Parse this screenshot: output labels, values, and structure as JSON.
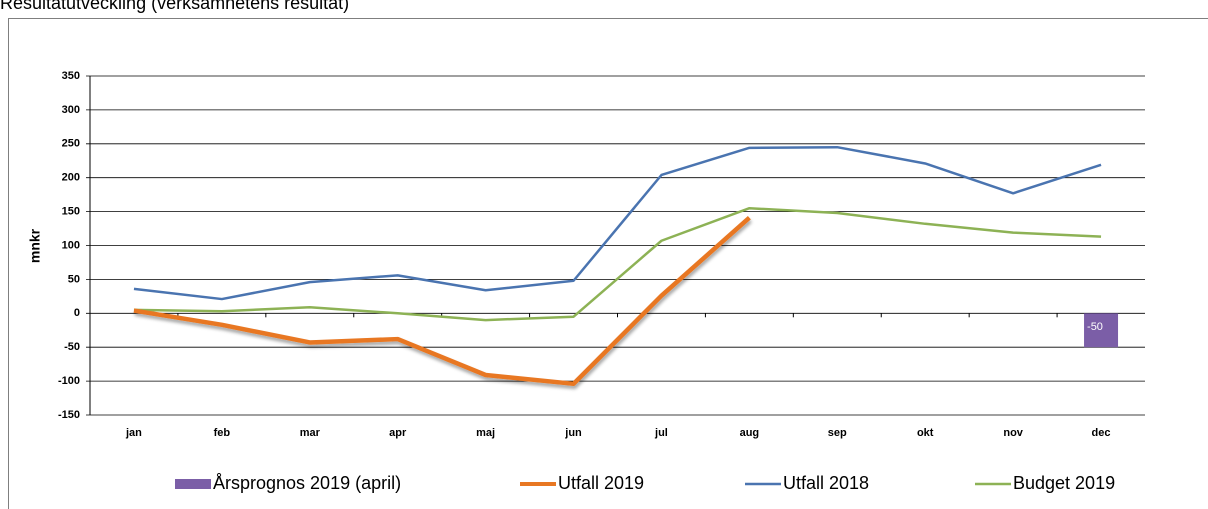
{
  "chart_data": {
    "type": "line",
    "title": "Resultatutveckling (verksamhetens resultat)",
    "ylabel": "mnkr",
    "categories": [
      "jan",
      "feb",
      "mar",
      "apr",
      "maj",
      "jun",
      "jul",
      "aug",
      "sep",
      "okt",
      "nov",
      "dec"
    ],
    "ylim": [
      -150,
      350
    ],
    "yticks": [
      -150,
      -100,
      -50,
      0,
      50,
      100,
      150,
      200,
      250,
      300,
      350
    ],
    "grid": true,
    "legend": "bottom",
    "series": [
      {
        "name": "Årsprognos 2019 (april)",
        "type": "bar",
        "color": "#7b5ea7",
        "values": [
          null,
          null,
          null,
          null,
          null,
          null,
          null,
          null,
          null,
          null,
          null,
          -50
        ]
      },
      {
        "name": "Utfall 2019",
        "color": "#e87722",
        "values": [
          4,
          -17,
          -43,
          -38,
          -91,
          -104,
          26,
          141,
          null,
          null,
          null,
          null
        ]
      },
      {
        "name": "Utfall 2018",
        "color": "#4a74b0",
        "values": [
          36,
          21,
          46,
          56,
          34,
          48,
          204,
          244,
          245,
          221,
          177,
          219
        ]
      },
      {
        "name": "Budget 2019",
        "color": "#8db255",
        "values": [
          5,
          3,
          9,
          0,
          -10,
          -5,
          107,
          155,
          148,
          132,
          119,
          113
        ]
      }
    ]
  }
}
